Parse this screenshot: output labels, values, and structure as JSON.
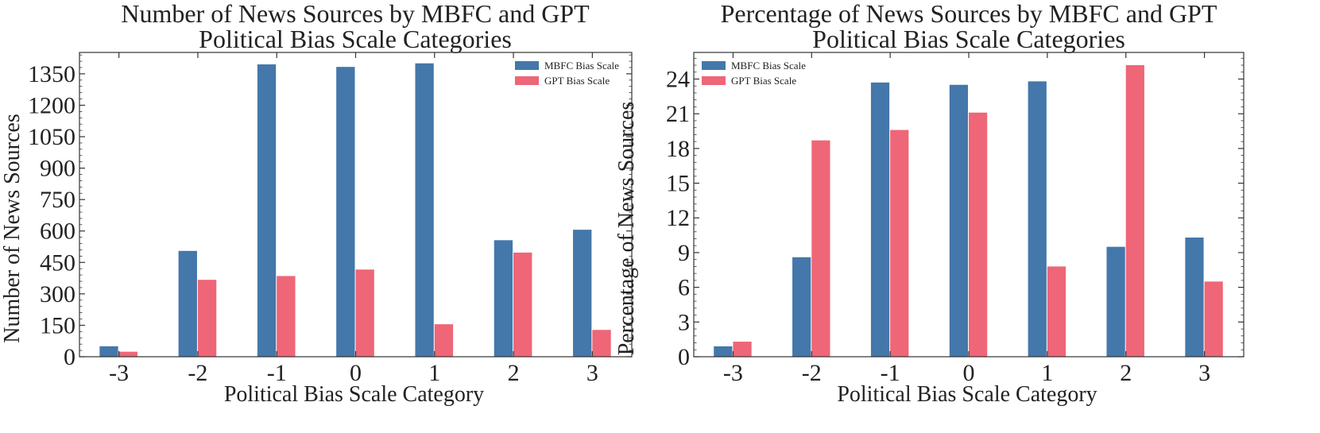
{
  "colors": {
    "mbfc": "#4477aa",
    "gpt": "#ee6677"
  },
  "chart_data": [
    {
      "type": "bar",
      "title": [
        "Number of News Sources by MBFC and GPT",
        "Political Bias Scale Categories"
      ],
      "xlabel": "Political Bias Scale Category",
      "ylabel": "Number of News Sources",
      "categories": [
        "-3",
        "-2",
        "-1",
        "0",
        "1",
        "2",
        "3"
      ],
      "ylim": [
        0,
        1452
      ],
      "yticks": [
        0,
        150,
        300,
        450,
        600,
        750,
        900,
        1050,
        1200,
        1350
      ],
      "legend": "top-right",
      "series": [
        {
          "name": "MBFC Bias Scale",
          "values": [
            50,
            505,
            1395,
            1383,
            1400,
            556,
            606
          ]
        },
        {
          "name": "GPT Bias Scale",
          "values": [
            24,
            367,
            385,
            416,
            155,
            497,
            128
          ]
        }
      ]
    },
    {
      "type": "bar",
      "title": [
        "Percentage of News Sources by MBFC and GPT",
        "Political Bias Scale Categories"
      ],
      "xlabel": "Political Bias Scale Category",
      "ylabel": "Percentage of News Sources",
      "categories": [
        "-3",
        "-2",
        "-1",
        "0",
        "1",
        "2",
        "3"
      ],
      "ylim": [
        0,
        26.3
      ],
      "yticks": [
        0,
        3,
        6,
        9,
        12,
        15,
        18,
        21,
        24
      ],
      "legend": "top-left",
      "series": [
        {
          "name": "MBFC Bias Scale",
          "values": [
            0.9,
            8.6,
            23.7,
            23.5,
            23.8,
            9.5,
            10.3
          ]
        },
        {
          "name": "GPT Bias Scale",
          "values": [
            1.3,
            18.7,
            19.6,
            21.1,
            7.8,
            25.2,
            6.5
          ]
        }
      ]
    }
  ]
}
